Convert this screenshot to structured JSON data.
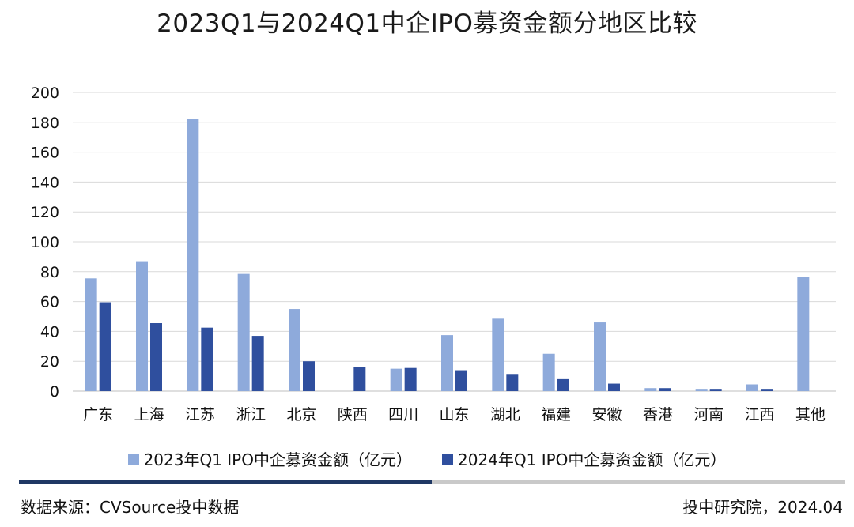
{
  "title": "2023Q1与2024Q1中企IPO募资金额分地区比较",
  "colors": {
    "series1": "#8eaadb",
    "series2": "#2f4f9e",
    "grid": "#d9d9d9",
    "axis": "#bfbfbf"
  },
  "chart_data": {
    "type": "bar",
    "title": "2023Q1与2024Q1中企IPO募资金额分地区比较",
    "xlabel": "",
    "ylabel": "",
    "ylim": [
      0,
      200
    ],
    "yticks": [
      0,
      20,
      40,
      60,
      80,
      100,
      120,
      140,
      160,
      180,
      200
    ],
    "grid": true,
    "legend": "bottom",
    "categories": [
      "广东",
      "上海",
      "江苏",
      "浙江",
      "北京",
      "陕西",
      "四川",
      "山东",
      "湖北",
      "福建",
      "安徽",
      "香港",
      "河南",
      "江西",
      "其他"
    ],
    "series": [
      {
        "name": "2023年Q1 IPO中企募资金额（亿元）",
        "values": [
          75.5,
          87,
          182.5,
          78.5,
          55,
          0,
          15,
          37.5,
          48.5,
          25,
          46,
          2,
          1.5,
          4.5,
          76.5
        ]
      },
      {
        "name": "2024年Q1 IPO中企募资金额（亿元）",
        "values": [
          59.5,
          45.5,
          42.5,
          37,
          20,
          16,
          15.5,
          14,
          11.5,
          8,
          5,
          2,
          1.5,
          1.5,
          0
        ]
      }
    ]
  },
  "footer": {
    "source": "数据来源：CVSource投中数据",
    "credit": "投中研究院，2024.04"
  }
}
